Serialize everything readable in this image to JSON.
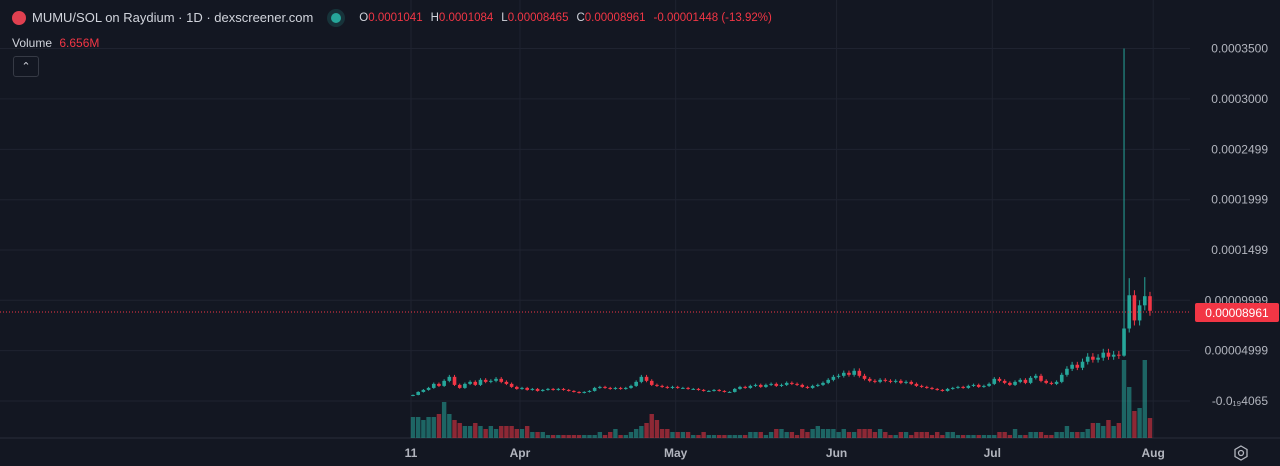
{
  "header": {
    "title": "MUMU/SOL on Raydium · 1D · dexscreener.com",
    "status": "live",
    "ohlc": {
      "open_label": "O",
      "open": "0.0001041",
      "high_label": "H",
      "high": "0.0001084",
      "low_label": "L",
      "low": "0.00008465",
      "close_label": "C",
      "close": "0.00008961",
      "change": "-0.00001448 (-13.92%)"
    },
    "volume_label": "Volume",
    "volume_value": "6.656M",
    "collapse_icon": "chevron-up-icon"
  },
  "colors": {
    "up": "#26a69a",
    "down": "#f23645",
    "background": "#131722",
    "grid": "#1f2330"
  },
  "chart_data": {
    "type": "candlestick",
    "interval": "1D",
    "start_date": "Mar 11",
    "end_date": "Jul 31",
    "y_ticks": [
      "0.0003500",
      "0.0003000",
      "0.0002499",
      "0.0001999",
      "0.0001499",
      "0.00009999",
      "0.00004999",
      "-0.0₁₉4065"
    ],
    "y_tick_values": [
      0.00035,
      0.0003,
      0.0002499,
      0.0001999,
      0.0001499,
      9.999e-05,
      4.999e-05,
      0
    ],
    "x_ticks": [
      "11",
      "Apr",
      "May",
      "Jun",
      "Jul",
      "Aug"
    ],
    "current_price": "0.00008961",
    "closes": [
      6e-06,
      9e-06,
      1.1e-05,
      1.3e-05,
      1.7e-05,
      1.5e-05,
      2e-05,
      2.4e-05,
      1.6e-05,
      1.3e-05,
      1.7e-05,
      1.9e-05,
      1.6e-05,
      2.1e-05,
      1.9e-05,
      2e-05,
      2.2e-05,
      1.9e-05,
      1.7e-05,
      1.4e-05,
      1.2e-05,
      1.3e-05,
      1.1e-05,
      1.2e-05,
      1e-05,
      1.1e-05,
      1.2e-05,
      1.1e-05,
      1.2e-05,
      1.1e-05,
      1e-05,
      9e-06,
      8e-06,
      9e-06,
      1e-05,
      1.3e-05,
      1.4e-05,
      1.3e-05,
      1.2e-05,
      1.3e-05,
      1.2e-05,
      1.3e-05,
      1.5e-05,
      1.9e-05,
      2.4e-05,
      2e-05,
      1.6e-05,
      1.5e-05,
      1.4e-05,
      1.3e-05,
      1.4e-05,
      1.3e-05,
      1.3e-05,
      1.2e-05,
      1.2e-05,
      1.1e-05,
      1e-05,
      1e-05,
      1.1e-05,
      1e-05,
      9e-06,
      9e-06,
      1.2e-05,
      1.4e-05,
      1.3e-05,
      1.5e-05,
      1.6e-05,
      1.4e-05,
      1.6e-05,
      1.7e-05,
      1.5e-05,
      1.6e-05,
      1.8e-05,
      1.7e-05,
      1.6e-05,
      1.4e-05,
      1.3e-05,
      1.5e-05,
      1.6e-05,
      1.8e-05,
      2.1e-05,
      2.4e-05,
      2.5e-05,
      2.8e-05,
      2.6e-05,
      3e-05,
      2.5e-05,
      2.2e-05,
      2e-05,
      1.9e-05,
      2.1e-05,
      2e-05,
      1.9e-05,
      2e-05,
      1.8e-05,
      1.9e-05,
      1.7e-05,
      1.5e-05,
      1.4e-05,
      1.3e-05,
      1.2e-05,
      1.1e-05,
      1e-05,
      1.2e-05,
      1.3e-05,
      1.4e-05,
      1.3e-05,
      1.5e-05,
      1.6e-05,
      1.4e-05,
      1.5e-05,
      1.7e-05,
      2.2e-05,
      2e-05,
      1.8e-05,
      1.6e-05,
      1.9e-05,
      2.1e-05,
      1.8e-05,
      2.3e-05,
      2.5e-05,
      2e-05,
      1.8e-05,
      1.7e-05,
      1.9e-05,
      2.6e-05,
      3.2e-05,
      3.6e-05,
      3.3e-05,
      3.9e-05,
      4.4e-05,
      4.1e-05,
      4.3e-05,
      4.8e-05,
      4.4e-05,
      4.6e-05,
      4.5e-05
    ],
    "last_candles_ohlc": [
      [
        4.5e-05,
        0.00035,
        4.4e-05,
        7.2e-05
      ],
      [
        7.2e-05,
        0.000122,
        6.8e-05,
        0.000105
      ],
      [
        0.000105,
        0.00011,
        7.5e-05,
        8e-05
      ],
      [
        8e-05,
        0.0001,
        7.5e-05,
        9.5e-05
      ],
      [
        9.5e-05,
        0.000123,
        9e-05,
        0.0001041
      ],
      [
        0.0001041,
        0.0001084,
        8.465e-05,
        8.961e-05
      ]
    ],
    "volume_unit": "M",
    "volumes": [
      7,
      7,
      6,
      7,
      7,
      8,
      12,
      8,
      6,
      5,
      4,
      4,
      5,
      4,
      3,
      4,
      3,
      4,
      4,
      4,
      3,
      3,
      4,
      2,
      2,
      2,
      1,
      1,
      1,
      1,
      1,
      1,
      1,
      1,
      1,
      1,
      2,
      1,
      2,
      3,
      1,
      1,
      2,
      3,
      4,
      5,
      8,
      6,
      3,
      3,
      2,
      2,
      2,
      2,
      1,
      1,
      2,
      1,
      1,
      1,
      1,
      1,
      1,
      1,
      1,
      2,
      2,
      2,
      1,
      2,
      3,
      3,
      2,
      2,
      1,
      3,
      2,
      3,
      4,
      3,
      3,
      3,
      2,
      3,
      2,
      2,
      3,
      3,
      3,
      2,
      3,
      2,
      1,
      1,
      2,
      2,
      1,
      2,
      2,
      2,
      1,
      2,
      1,
      2,
      2,
      1,
      1,
      1,
      1,
      1,
      1,
      1,
      1,
      2,
      2,
      1,
      3,
      1,
      1,
      2,
      2,
      2,
      1,
      1,
      2,
      2,
      4,
      2,
      2,
      2,
      3,
      5,
      5,
      4,
      6,
      4,
      5,
      26,
      17,
      9,
      10,
      26,
      6.656
    ]
  }
}
